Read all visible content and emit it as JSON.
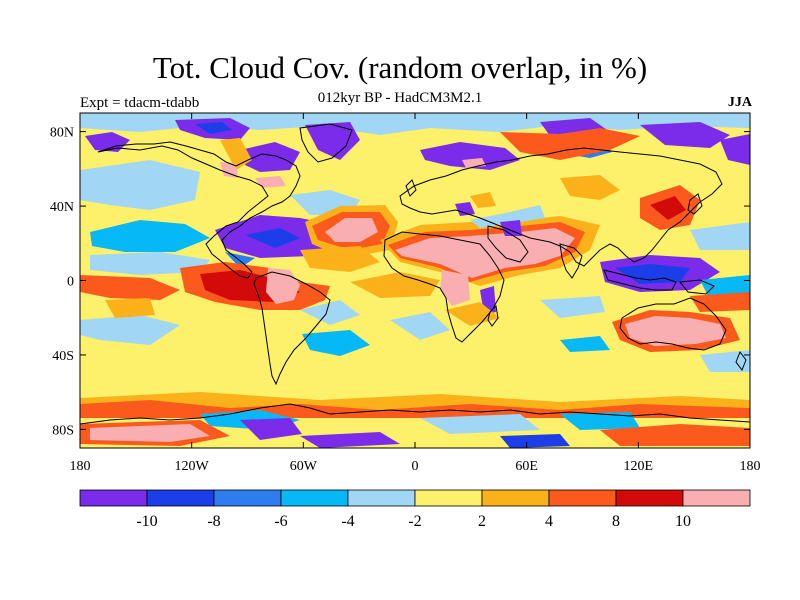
{
  "header": {
    "title": "Tot. Cloud Cov. (random overlap, in %)",
    "subtitle": "012kyr BP - HadCM3M2.1",
    "left_label": "Expt = tdacm-tdabb",
    "right_label": "JJA"
  },
  "map": {
    "projection": "equirectangular",
    "lon_range": [
      -180,
      180
    ],
    "lat_range": [
      -90,
      90
    ],
    "lat_ticks": [
      {
        "lat": 80,
        "label": "80N"
      },
      {
        "lat": 40,
        "label": "40N"
      },
      {
        "lat": 0,
        "label": "0"
      },
      {
        "lat": -40,
        "label": "40S"
      },
      {
        "lat": -80,
        "label": "80S"
      }
    ],
    "lon_ticks": [
      {
        "lon": -180,
        "label": "180"
      },
      {
        "lon": -120,
        "label": "120W"
      },
      {
        "lon": -60,
        "label": "60W"
      },
      {
        "lon": 0,
        "label": "0"
      },
      {
        "lon": 60,
        "label": "60E"
      },
      {
        "lon": 120,
        "label": "120E"
      },
      {
        "lon": 180,
        "label": "180"
      }
    ],
    "background_color": "#fdf06a",
    "coastline_color": "#000000"
  },
  "colorbar": {
    "colors": [
      "#7b2bea",
      "#1c3ee8",
      "#2d7cf0",
      "#06b8f5",
      "#a2d6f5",
      "#fdf06a",
      "#fbb21a",
      "#fb5a1c",
      "#d20a0a",
      "#f9afb2"
    ],
    "labels": [
      "-10",
      "-8",
      "-6",
      "-4",
      "-2",
      "2",
      "4",
      "8",
      "10"
    ]
  }
}
